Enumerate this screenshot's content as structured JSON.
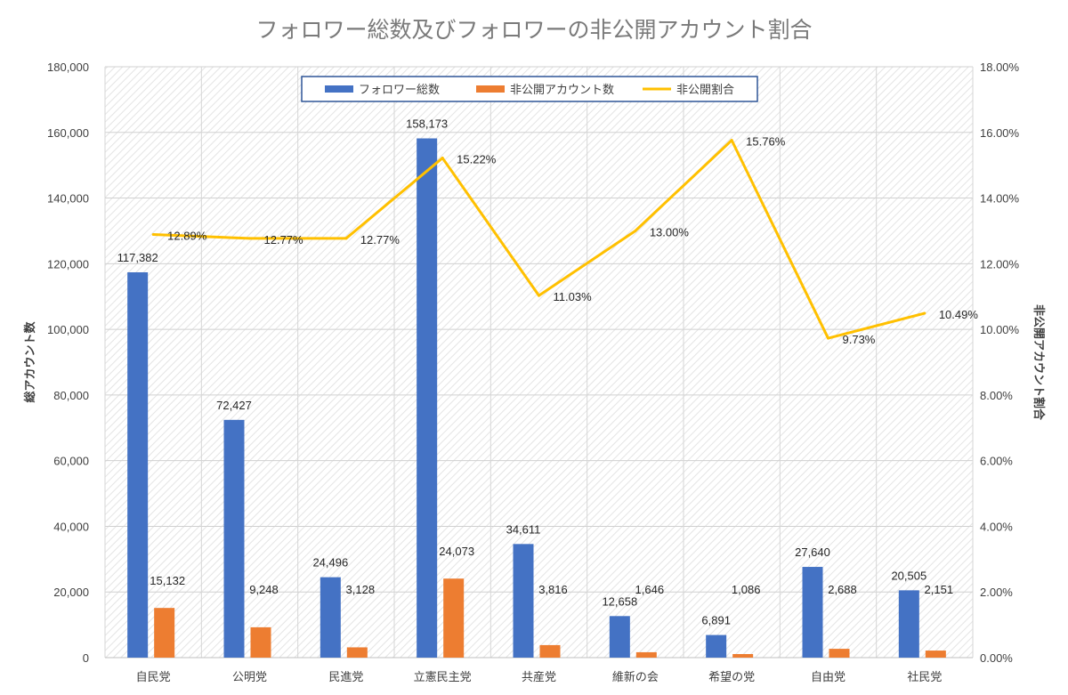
{
  "chart_data": {
    "type": "bar",
    "title": "フォロワー総数及びフォロワーの非公開アカウント割合",
    "ylabel": "総アカウント数",
    "y2label": "非公開アカウント割合",
    "ylim": [
      0,
      180000
    ],
    "y2lim": [
      0,
      0.18
    ],
    "yticks": [
      "0",
      "20,000",
      "40,000",
      "60,000",
      "80,000",
      "100,000",
      "120,000",
      "140,000",
      "160,000",
      "180,000"
    ],
    "y2ticks": [
      "0.00%",
      "2.00%",
      "4.00%",
      "6.00%",
      "8.00%",
      "10.00%",
      "12.00%",
      "14.00%",
      "16.00%",
      "18.00%"
    ],
    "categories": [
      "自民党",
      "公明党",
      "民進党",
      "立憲民主党",
      "共産党",
      "維新の会",
      "希望の党",
      "自由党",
      "社民党"
    ],
    "series": [
      {
        "name": "フォロワー総数",
        "type": "bar",
        "axis": "left",
        "color": "#4472C4",
        "values": [
          117382,
          72427,
          24496,
          158173,
          34611,
          12658,
          6891,
          27640,
          20505
        ],
        "labels": [
          "117,382",
          "72,427",
          "24,496",
          "158,173",
          "34,611",
          "12,658",
          "6,891",
          "27,640",
          "20,505"
        ]
      },
      {
        "name": "非公開アカウント数",
        "type": "bar",
        "axis": "left",
        "color": "#ED7D31",
        "values": [
          15132,
          9248,
          3128,
          24073,
          3816,
          1646,
          1086,
          2688,
          2151
        ],
        "labels": [
          "15,132",
          "9,248",
          "3,128",
          "24,073",
          "3,816",
          "1,646",
          "1,086",
          "2,688",
          "2,151"
        ]
      },
      {
        "name": "非公開割合",
        "type": "line",
        "axis": "right",
        "color": "#FFC000",
        "values": [
          0.1289,
          0.1277,
          0.1277,
          0.1522,
          0.1103,
          0.13,
          0.1576,
          0.0973,
          0.1049
        ],
        "labels": [
          "12.89%",
          "12.77%",
          "12.77%",
          "15.22%",
          "11.03%",
          "13.00%",
          "15.76%",
          "9.73%",
          "10.49%"
        ]
      }
    ],
    "legend": "top-center",
    "grid": true
  }
}
